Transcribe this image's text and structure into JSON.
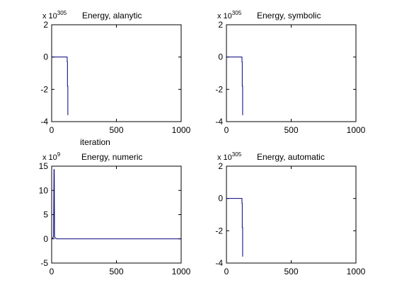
{
  "chart_data": [
    {
      "type": "line",
      "title": "Energy, alanytic",
      "multiplier": {
        "base": "x 10",
        "exponent": "305"
      },
      "xlabel": "iteration",
      "ylabel": "",
      "xlim": [
        0,
        1000
      ],
      "ylim": [
        -4,
        2
      ],
      "xticks": [
        0,
        500,
        1000
      ],
      "yticks": [
        -4,
        -2,
        0,
        2
      ],
      "grid": false,
      "color": "#00007f",
      "series": [
        {
          "x": [
            0,
            120,
            120,
            122,
            122,
            125,
            125
          ],
          "y": [
            0,
            0,
            -0.3,
            -0.3,
            -1.8,
            -1.8,
            -3.6
          ]
        }
      ]
    },
    {
      "type": "line",
      "title": "Energy, symbolic",
      "multiplier": {
        "base": "x 10",
        "exponent": "305"
      },
      "xlabel": "",
      "ylabel": "",
      "xlim": [
        0,
        1000
      ],
      "ylim": [
        -4,
        2
      ],
      "xticks": [
        0,
        500,
        1000
      ],
      "yticks": [
        -4,
        -2,
        0,
        2
      ],
      "grid": false,
      "color": "#00007f",
      "series": [
        {
          "x": [
            0,
            120,
            120,
            122,
            122,
            125,
            125
          ],
          "y": [
            0,
            0,
            -0.3,
            -0.3,
            -1.8,
            -1.8,
            -3.6
          ]
        }
      ]
    },
    {
      "type": "line",
      "title": "Energy, numeric",
      "multiplier": {
        "base": "x 10",
        "exponent": "9"
      },
      "xlabel": "",
      "ylabel": "",
      "xlim": [
        0,
        1000
      ],
      "ylim": [
        -5,
        15
      ],
      "xticks": [
        0,
        500,
        1000
      ],
      "yticks": [
        -5,
        0,
        5,
        10,
        15
      ],
      "grid": false,
      "color": "#00007f",
      "series": [
        {
          "x": [
            0,
            10,
            15,
            18,
            20,
            22,
            25,
            40,
            1000
          ],
          "y": [
            0,
            0.2,
            0.5,
            14.3,
            14.3,
            0.5,
            0.2,
            0,
            0
          ]
        }
      ]
    },
    {
      "type": "line",
      "title": "Energy, automatic",
      "multiplier": {
        "base": "x 10",
        "exponent": "305"
      },
      "xlabel": "",
      "ylabel": "",
      "xlim": [
        0,
        1000
      ],
      "ylim": [
        -4,
        2
      ],
      "xticks": [
        0,
        500,
        1000
      ],
      "yticks": [
        -4,
        -2,
        0,
        2
      ],
      "grid": false,
      "color": "#00007f",
      "series": [
        {
          "x": [
            0,
            120,
            120,
            122,
            122,
            125,
            125
          ],
          "y": [
            0,
            0,
            -0.3,
            -0.3,
            -1.8,
            -1.8,
            -3.6
          ]
        }
      ]
    }
  ]
}
